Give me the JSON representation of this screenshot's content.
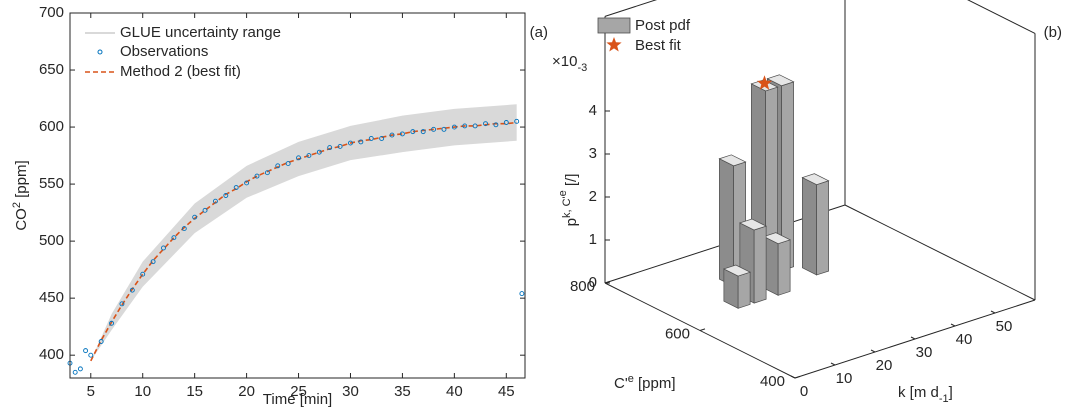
{
  "chart_data": [
    {
      "type": "line",
      "panel_label": "(a)",
      "x_label": "Time [min]",
      "y_label": [
        "CO",
        "2",
        " [ppm]"
      ],
      "xlim": [
        3,
        46.8
      ],
      "ylim": [
        380,
        700
      ],
      "xticks": [
        5,
        10,
        15,
        20,
        25,
        30,
        35,
        40,
        45
      ],
      "yticks": [
        400,
        450,
        500,
        550,
        600,
        650,
        700
      ],
      "series": [
        {
          "name": "GLUE uncertainty range",
          "color": "#d9d9d9",
          "x": [
            5,
            7,
            10,
            15,
            20,
            25,
            30,
            35,
            40,
            46
          ],
          "lower": [
            395,
            422,
            460,
            507,
            538,
            557,
            571,
            578,
            584,
            588
          ],
          "upper": [
            395,
            436,
            482,
            533,
            566,
            587,
            601,
            610,
            616,
            620
          ]
        },
        {
          "name": "Observations",
          "color": "#0072bd",
          "x": [
            3,
            3.5,
            4,
            4.5,
            5,
            6,
            7,
            8,
            9,
            10,
            11,
            12,
            13,
            14,
            15,
            16,
            17,
            18,
            19,
            20,
            21,
            22,
            23,
            24,
            25,
            26,
            27,
            28,
            29,
            30,
            31,
            32,
            33,
            34,
            35,
            36,
            37,
            38,
            39,
            40,
            41,
            42,
            43,
            44,
            45,
            46,
            46.5
          ],
          "values": [
            393,
            385,
            388,
            404,
            400,
            412,
            428,
            445,
            457,
            471,
            482,
            494,
            503,
            511,
            521,
            527,
            535,
            540,
            547,
            551,
            557,
            560,
            566,
            568,
            573,
            575,
            578,
            582,
            583,
            586,
            587,
            590,
            590,
            593,
            594,
            596,
            596,
            598,
            598,
            600,
            601,
            601,
            603,
            602,
            604,
            605,
            454
          ]
        },
        {
          "name": "Method 2 (best fit)",
          "color": "#d95319",
          "x": [
            5,
            6,
            7,
            8,
            9,
            10,
            11,
            12,
            13,
            14,
            15,
            16,
            17,
            18,
            19,
            20,
            21,
            22,
            23,
            24,
            25,
            26,
            27,
            28,
            29,
            30,
            31,
            32,
            33,
            34,
            35,
            36,
            37,
            38,
            39,
            40,
            41,
            42,
            43,
            44,
            45,
            46
          ],
          "values": [
            395,
            413,
            429,
            444,
            458,
            471,
            483,
            493,
            503,
            512,
            520,
            527,
            534,
            541,
            546,
            552,
            557,
            561,
            565,
            569,
            572,
            575,
            578,
            581,
            583,
            586,
            588,
            589,
            591,
            593,
            594,
            596,
            597,
            598,
            599,
            600,
            601,
            601,
            602,
            603,
            603,
            604
          ]
        }
      ]
    },
    {
      "type": "bar3d",
      "panel_label": "(b)",
      "k_label": [
        "k [m d",
        "-1",
        "]"
      ],
      "ce_label": [
        "C'",
        "e",
        " [ppm]"
      ],
      "z_label": [
        "p",
        "k, C'",
        "e",
        " [/]"
      ],
      "z_exponent": [
        "×10",
        "-3"
      ],
      "klim": [
        0,
        60
      ],
      "kticks": [
        0,
        10,
        20,
        30,
        40,
        50
      ],
      "celim": [
        400,
        800
      ],
      "ceticks": [
        400,
        600,
        800
      ],
      "zlim": [
        0,
        6.2
      ],
      "zticks": [
        0,
        1,
        2,
        3,
        4
      ],
      "series": [
        {
          "name": "Post pdf",
          "color": "#a6a6a6",
          "k": [
            14,
            20,
            18,
            28,
            32,
            24,
            36
          ],
          "ce": [
            640,
            700,
            640,
            700,
            700,
            640,
            660
          ],
          "values": [
            0.75,
            2.8,
            1.7,
            4.3,
            4.3,
            1.2,
            2.1
          ]
        },
        {
          "name": "Best fit",
          "color": "#d95319",
          "k": [
            28
          ],
          "ce": [
            700
          ],
          "values": [
            4.35
          ]
        }
      ]
    }
  ]
}
